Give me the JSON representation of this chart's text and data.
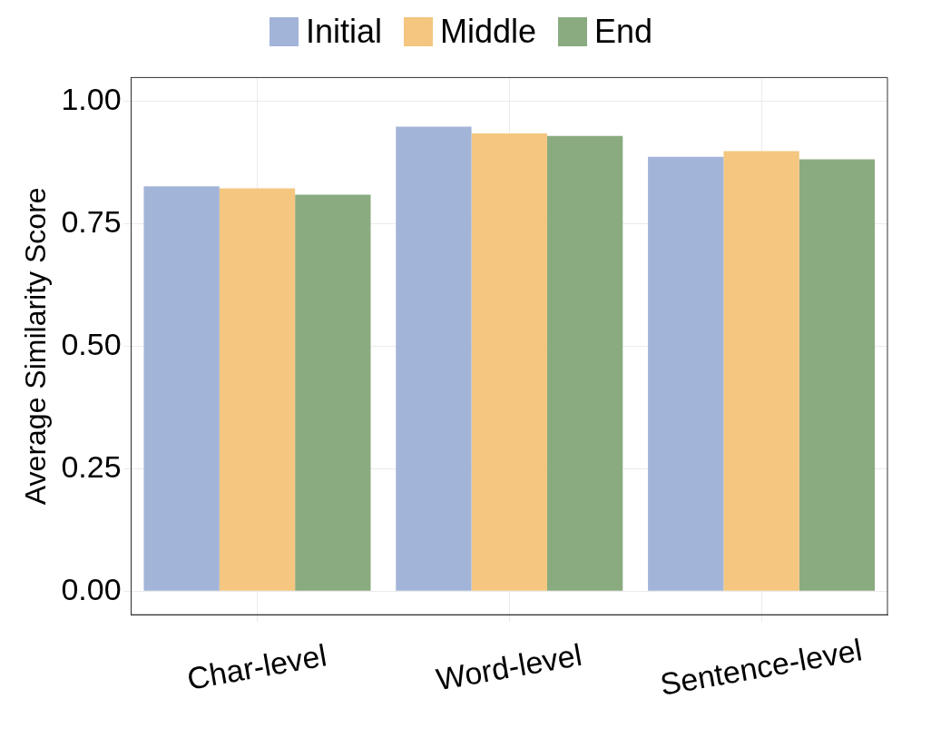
{
  "chart_data": {
    "type": "bar",
    "ylabel": "Average Similarity Score",
    "categories": [
      "Char-level",
      "Word-level",
      "Sentence-level"
    ],
    "series": [
      {
        "name": "Initial",
        "color": "#a3b4d9",
        "values": [
          0.826,
          0.948,
          0.886
        ]
      },
      {
        "name": "Middle",
        "color": "#f4c67f",
        "values": [
          0.822,
          0.934,
          0.898
        ]
      },
      {
        "name": "End",
        "color": "#8aab80",
        "values": [
          0.809,
          0.929,
          0.881
        ]
      }
    ],
    "ylim": [
      -0.048,
      1.048
    ],
    "yticks": [
      {
        "value": 0,
        "label": "0.00"
      },
      {
        "value": 0.25,
        "label": "0.25"
      },
      {
        "value": 0.5,
        "label": "0.50"
      },
      {
        "value": 0.75,
        "label": "0.75"
      },
      {
        "value": 1,
        "label": "1.00"
      }
    ],
    "grid": true,
    "legend": "top"
  }
}
